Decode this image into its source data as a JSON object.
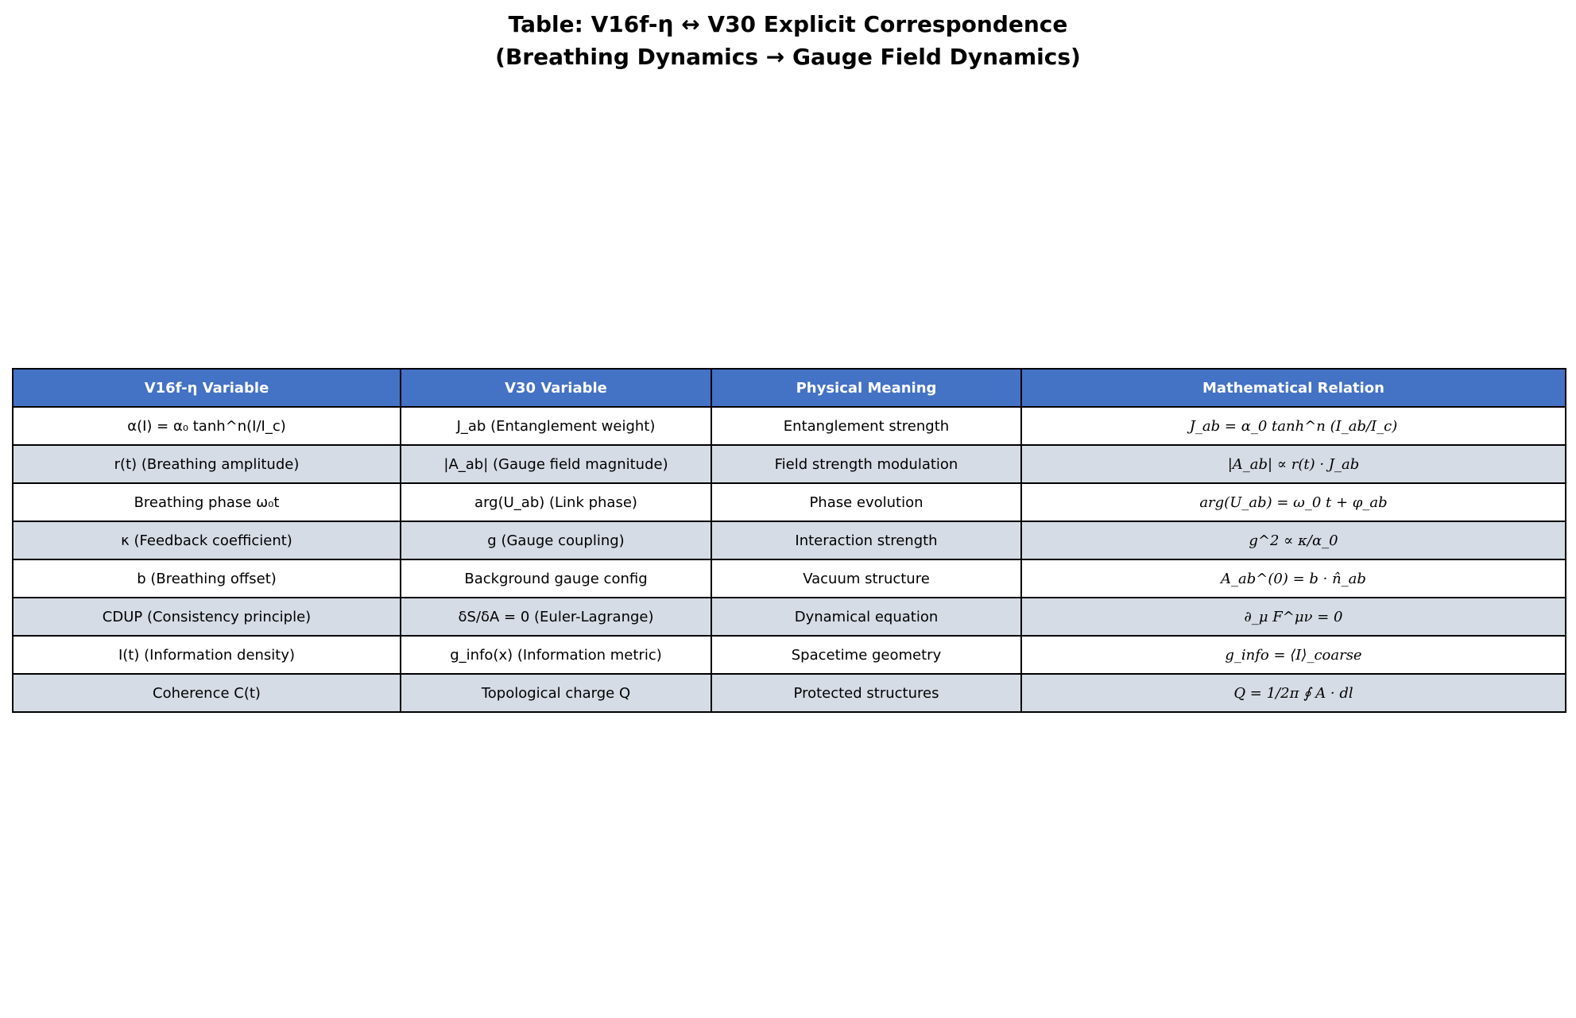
{
  "title": {
    "line1": "Table: V16f-η ↔ V30 Explicit Correspondence",
    "line2": "(Breathing Dynamics → Gauge Field Dynamics)"
  },
  "table": {
    "headers": [
      "V16f-η Variable",
      "V30 Variable",
      "Physical Meaning",
      "Mathematical Relation"
    ],
    "header_color": "#4472c4",
    "stripe_color": "#d6dce5",
    "rows": [
      [
        "α(I) = α₀ tanh^n(I/I_c)",
        "J_ab (Entanglement weight)",
        "Entanglement strength",
        "J_ab = α_0 tanh^n (I_ab/I_c)"
      ],
      [
        "r(t) (Breathing amplitude)",
        "|A_ab| (Gauge field magnitude)",
        "Field strength modulation",
        "|A_ab| ∝ r(t) · J_ab"
      ],
      [
        "Breathing phase ω₀t",
        "arg(U_ab) (Link phase)",
        "Phase evolution",
        "arg(U_ab) = ω_0 t + φ_ab"
      ],
      [
        "κ (Feedback coefficient)",
        "g (Gauge coupling)",
        "Interaction strength",
        "g^2 ∝ κ/α_0"
      ],
      [
        "b (Breathing offset)",
        "Background gauge config",
        "Vacuum structure",
        "A_ab^(0) = b · n̂_ab"
      ],
      [
        "CDUP (Consistency principle)",
        "δS/δA = 0 (Euler-Lagrange)",
        "Dynamical equation",
        "∂_μ F^μν = 0"
      ],
      [
        "I(t) (Information density)",
        "g_info(x) (Information metric)",
        "Spacetime geometry",
        "g_info = ⟨I⟩_coarse"
      ],
      [
        "Coherence C(t)",
        "Topological charge Q",
        "Protected structures",
        "Q = 1/2π ∮ A · dl"
      ]
    ]
  }
}
